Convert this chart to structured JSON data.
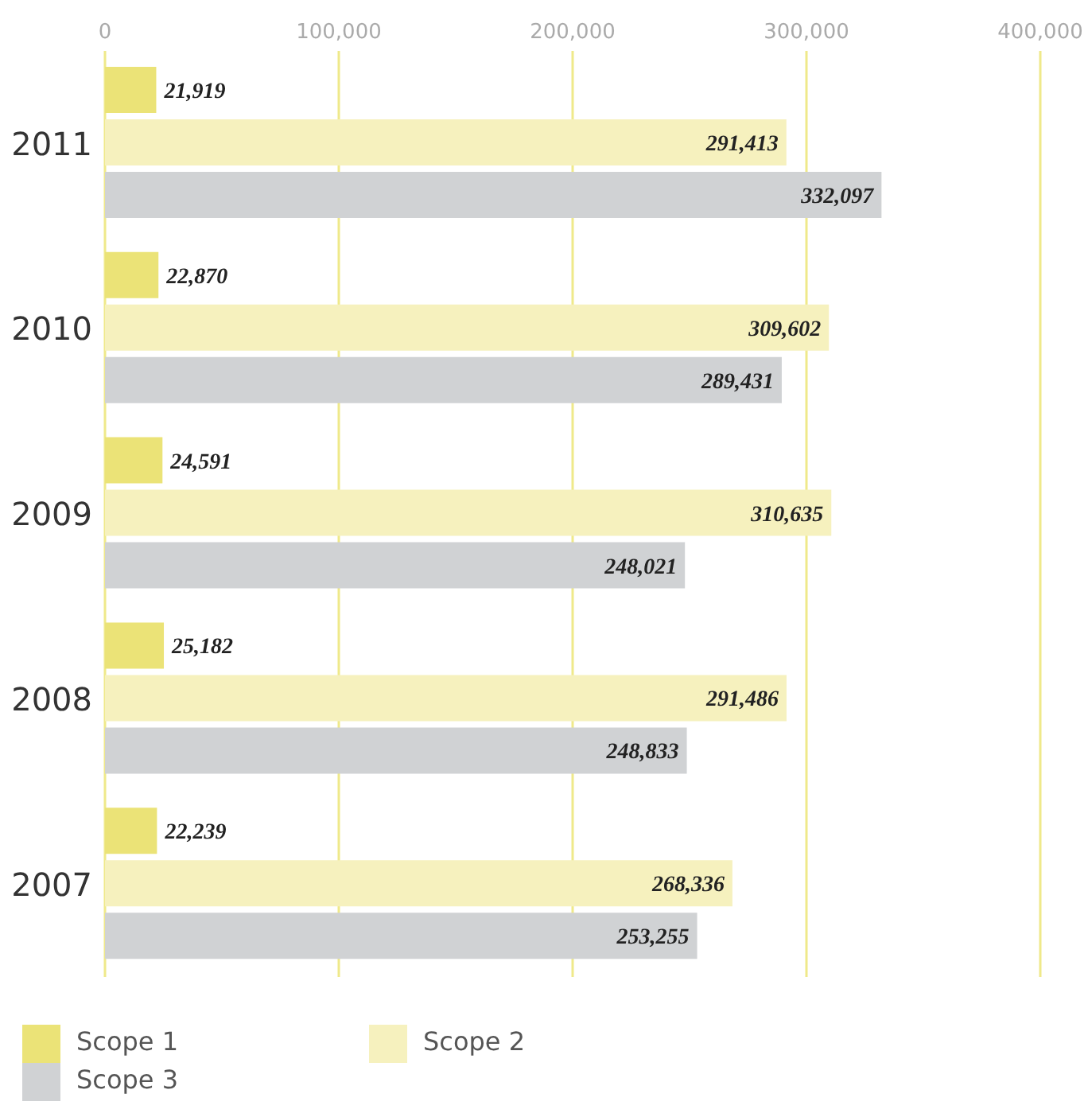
{
  "chart_data": {
    "type": "bar",
    "orientation": "horizontal",
    "categories": [
      "2011",
      "2010",
      "2009",
      "2008",
      "2007"
    ],
    "series": [
      {
        "name": "Scope 1",
        "color": "#ebe377",
        "values": [
          21919,
          22870,
          24591,
          25182,
          22239
        ],
        "value_labels": [
          "21,919",
          "22,870",
          "24,591",
          "25,182",
          "22,239"
        ]
      },
      {
        "name": "Scope 2",
        "color": "#f6f1be",
        "values": [
          291413,
          309602,
          310635,
          291486,
          268336
        ],
        "value_labels": [
          "291,413",
          "309,602",
          "310,635",
          "291,486",
          "268,336"
        ]
      },
      {
        "name": "Scope 3",
        "color": "#d0d2d4",
        "values": [
          332097,
          289431,
          248021,
          248833,
          253255
        ],
        "value_labels": [
          "332,097",
          "289,431",
          "248,021",
          "248,833",
          "253,255"
        ]
      }
    ],
    "xlim": [
      0,
      400000
    ],
    "xticks": [
      0,
      {
        "value": 100000,
        "label": "100,000"
      },
      {
        "value": 200000,
        "label": "200,000"
      },
      {
        "value": 300000,
        "label": "300,000"
      },
      {
        "value": 400000,
        "label": "400,000"
      }
    ],
    "grid": "x",
    "legend": "bottom"
  }
}
